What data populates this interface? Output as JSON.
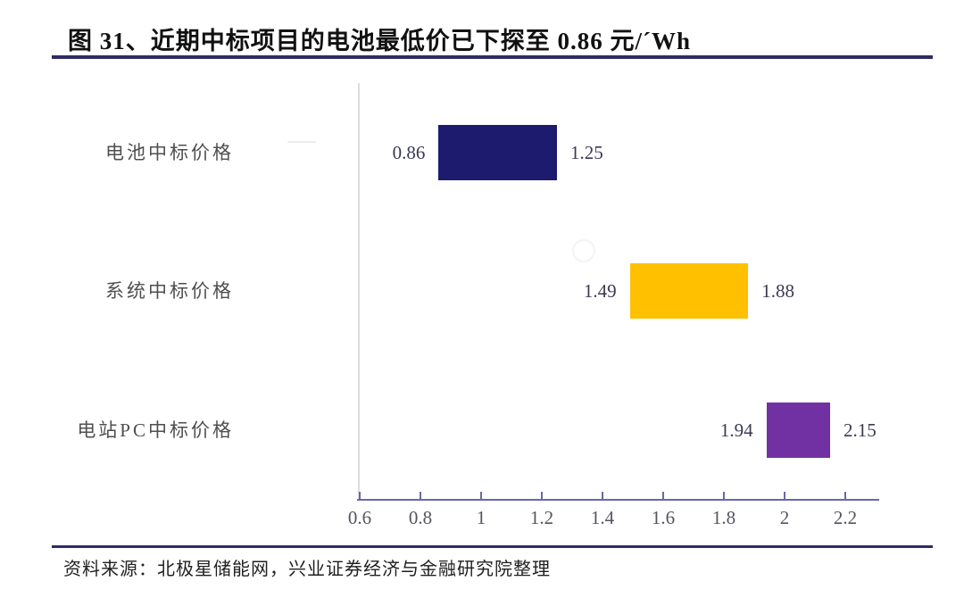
{
  "page": {
    "title": "图 31、近期中标项目的电池最低价已下探至 0.86 元/´Wh",
    "source_note": "资料来源：北极星储能网，兴业证券经济与金融研究院整理"
  },
  "colors": {
    "rule_navy": "#2e2c64",
    "axis_purple": "#6a68a8",
    "bar_battery_navy": "#1c1b6e",
    "bar_system_gold": "#ffc000",
    "bar_epc_purple": "#7231a2",
    "label_gray": "#4f4f4f"
  },
  "chart_data": {
    "type": "bar",
    "subtype": "horizontal_range_bars",
    "title": "近期中标项目的电池最低价已下探至0.86元/Wh",
    "categories": [
      "电池中标价格",
      "系统中标价格",
      "电站PC中标价格"
    ],
    "series": [
      {
        "name": "电池中标价格",
        "low": 0.86,
        "high": 1.25,
        "low_label": "0.86",
        "high_label": "1.25",
        "color": "#1c1b6e"
      },
      {
        "name": "系统中标价格",
        "low": 1.49,
        "high": 1.88,
        "low_label": "1.49",
        "high_label": "1.88",
        "color": "#ffc000"
      },
      {
        "name": "电站PC中标价格",
        "low": 1.94,
        "high": 2.15,
        "low_label": "1.94",
        "high_label": "2.15",
        "color": "#7231a2"
      }
    ],
    "x_ticks": [
      {
        "value": 0.6,
        "label": "0.6"
      },
      {
        "value": 0.8,
        "label": "0.8"
      },
      {
        "value": 1.0,
        "label": "1"
      },
      {
        "value": 1.2,
        "label": "1.2"
      },
      {
        "value": 1.4,
        "label": "1.4"
      },
      {
        "value": 1.6,
        "label": "1.6"
      },
      {
        "value": 1.8,
        "label": "1.8"
      },
      {
        "value": 2.0,
        "label": "2"
      },
      {
        "value": 2.2,
        "label": "2.2"
      }
    ],
    "xlim": [
      0.6,
      2.32
    ],
    "grid": false,
    "legend": "none"
  }
}
